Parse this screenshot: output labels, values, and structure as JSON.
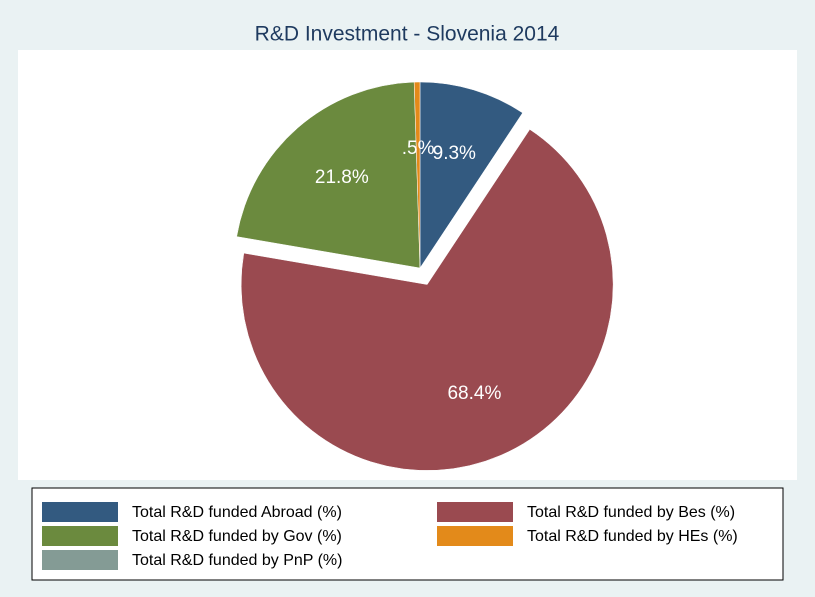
{
  "chart_data": {
    "type": "pie",
    "title": "R&D Investment - Slovenia 2014",
    "categories": [
      "Total R&D funded Abroad (%)",
      "Total R&D funded by Bes (%)",
      "Total R&D funded by Gov (%)",
      "Total R&D funded by HEs (%)",
      "Total R&D funded by PnP (%)"
    ],
    "values": [
      9.3,
      68.4,
      21.8,
      0.5,
      0
    ],
    "value_labels": [
      "9.3%",
      "68.4%",
      "21.8%",
      ".5%",
      null
    ],
    "colors": [
      "#335a80",
      "#9a4a50",
      "#6b8a3e",
      "#e38a1a",
      "#849b95"
    ],
    "explode": [
      false,
      true,
      false,
      false,
      false
    ],
    "legend": "bottom"
  }
}
